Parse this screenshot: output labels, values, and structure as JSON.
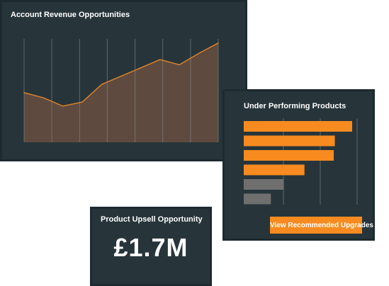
{
  "revenue_card": {
    "title": "Account Revenue Opportunities"
  },
  "products_card": {
    "title": "Under Performing Products",
    "button_label": "View Recommended Upgrades"
  },
  "upsell_card": {
    "title": "Product Upsell Opportunity",
    "value": "£1.7M"
  },
  "colors": {
    "card_background": "#27353b",
    "card_border": "#1d2a30",
    "accent_orange": "#f78b1f",
    "area_fill": "#5e4a3f",
    "area_line": "#d9822b",
    "neutral_bar": "#6f6f6f",
    "gridline": "#8a8f92"
  },
  "chart_data": [
    {
      "type": "area",
      "title": "Account Revenue Opportunities",
      "xlabel": "",
      "ylabel": "",
      "x": [
        0,
        1,
        2,
        3,
        4,
        5,
        6,
        7,
        8,
        9,
        10
      ],
      "y": [
        48,
        43,
        35,
        39,
        56,
        64,
        72,
        80,
        75,
        86,
        96
      ],
      "ylim": [
        0,
        100
      ],
      "grid": "vertical",
      "legend": "none"
    },
    {
      "type": "bar",
      "orientation": "horizontal",
      "title": "Under Performing Products",
      "categories": [
        "",
        "",
        "",
        "",
        "",
        ""
      ],
      "values": [
        100,
        84,
        83,
        56,
        37,
        25
      ],
      "highlighted": [
        true,
        true,
        true,
        true,
        false,
        false
      ],
      "xlim": [
        0,
        100
      ],
      "grid": "vertical",
      "legend": "none"
    }
  ]
}
